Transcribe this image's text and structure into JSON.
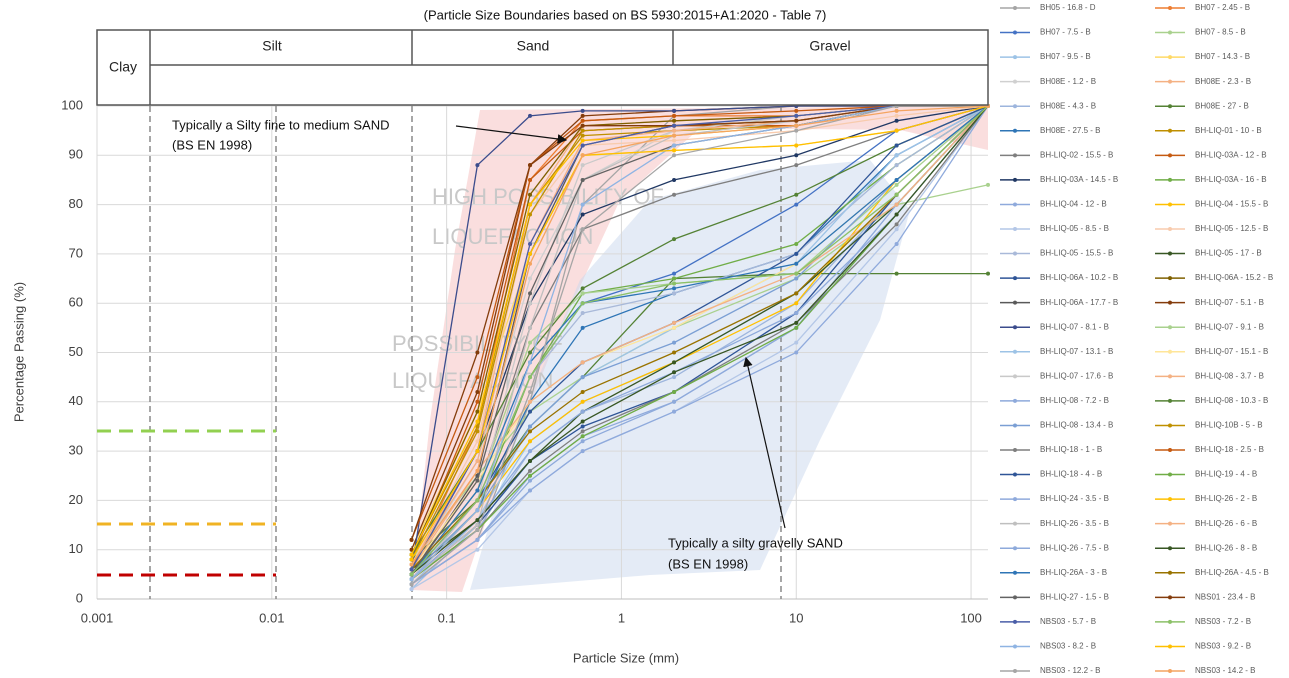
{
  "chart_data": {
    "type": "line",
    "title": "(Particle Size Boundaries based on BS 5930:2015+A1:2020 - Table 7)",
    "soil_classes": [
      "Clay",
      "Silt",
      "Sand",
      "Gravel"
    ],
    "x_label": "Particle Size (mm)",
    "y_label": "Percentage Passing (%)",
    "annotations": [
      "Typically a Silty fine to medium SAND",
      "(BS EN 1998)",
      "Typically a silty gravelly SAND",
      "(BS EN 1998)"
    ],
    "watermark": [
      "HIGH POSSIBILITY OF",
      "LIQUEFACTION",
      "POSSIBILITY OF",
      "LIQUEFACTION"
    ],
    "log_x": true,
    "grid": true,
    "xlim": [
      0.001,
      125
    ],
    "xticks": [
      0.001,
      0.01,
      0.1,
      1,
      10,
      100
    ],
    "ylim": [
      0,
      100
    ],
    "yticks": [
      0,
      10,
      20,
      30,
      40,
      50,
      60,
      70,
      80,
      90,
      100
    ],
    "x": [
      0.063,
      0.15,
      0.3,
      0.6,
      2,
      10,
      37.5,
      125
    ],
    "series": [
      {
        "name": "BH05 - 16.8 - D",
        "color": "#a5a5a5",
        "values": [
          3,
          12,
          40,
          80,
          98,
          100,
          100,
          100
        ]
      },
      {
        "name": "BH07 - 2.45 - B",
        "color": "#ed7d31",
        "values": [
          6,
          35,
          85,
          97,
          98,
          98,
          100,
          100
        ]
      },
      {
        "name": "BH07 - 7.5 - B",
        "color": "#4472c4",
        "values": [
          4,
          20,
          45,
          60,
          66,
          80,
          95,
          100
        ]
      },
      {
        "name": "BH07 - 8.5 - B",
        "color": "#a9d18e",
        "values": [
          8,
          25,
          38,
          45,
          55,
          65,
          80,
          84
        ]
      },
      {
        "name": "BH07 - 9.5 - B",
        "color": "#9dc3e6",
        "values": [
          2,
          15,
          32,
          40,
          48,
          62,
          80,
          100
        ]
      },
      {
        "name": "BH07 - 14.3 - B",
        "color": "#ffd966",
        "values": [
          10,
          38,
          70,
          90,
          91,
          92,
          95,
          100
        ]
      },
      {
        "name": "BH08E - 1.2 - B",
        "color": "#d0d0d0",
        "values": [
          6,
          28,
          65,
          85,
          95,
          98,
          100,
          100
        ]
      },
      {
        "name": "BH08E - 2.3 - B",
        "color": "#f4b183",
        "values": [
          7,
          30,
          80,
          96,
          97,
          98,
          100,
          100
        ]
      },
      {
        "name": "BH08E - 4.3 - B",
        "color": "#9db5dd",
        "values": [
          3,
          14,
          30,
          38,
          45,
          60,
          82,
          100
        ]
      },
      {
        "name": "BH08E - 27 - B",
        "color": "#548235",
        "values": [
          8,
          20,
          35,
          45,
          65,
          66,
          66,
          66
        ]
      },
      {
        "name": "BH08E - 27.5 - B",
        "color": "#2e75b6",
        "values": [
          4,
          18,
          40,
          55,
          62,
          70,
          90,
          100
        ]
      },
      {
        "name": "BH-LIQ-01 - 10 - B",
        "color": "#bf8f00",
        "values": [
          9,
          35,
          80,
          94,
          95,
          96,
          100,
          100
        ]
      },
      {
        "name": "BH-LIQ-02 - 15.5 - B",
        "color": "#7f7f7f",
        "values": [
          5,
          22,
          55,
          75,
          82,
          88,
          95,
          100
        ]
      },
      {
        "name": "BH-LIQ-03A - 12 - B",
        "color": "#c55a11",
        "values": [
          8,
          40,
          85,
          95,
          96,
          96,
          100,
          100
        ]
      },
      {
        "name": "BH-LIQ-03A - 14.5 - B",
        "color": "#203864",
        "values": [
          6,
          30,
          60,
          78,
          85,
          90,
          97,
          100
        ]
      },
      {
        "name": "BH-LIQ-03A - 16 - B",
        "color": "#70ad47",
        "values": [
          5,
          18,
          45,
          62,
          65,
          72,
          88,
          100
        ]
      },
      {
        "name": "BH-LIQ-04 - 12 - B",
        "color": "#8faadc",
        "values": [
          3,
          12,
          25,
          33,
          40,
          55,
          78,
          100
        ]
      },
      {
        "name": "BH-LIQ-04 - 15.5 - B",
        "color": "#ffc000",
        "values": [
          4,
          18,
          32,
          40,
          48,
          60,
          85,
          100
        ]
      },
      {
        "name": "BH-LIQ-05 - 8.5 - B",
        "color": "#b4c7e7",
        "values": [
          2,
          10,
          22,
          30,
          38,
          52,
          75,
          100
        ]
      },
      {
        "name": "BH-LIQ-05 - 12.5 - B",
        "color": "#f8cbad",
        "values": [
          7,
          32,
          78,
          92,
          93,
          95,
          98,
          100
        ]
      },
      {
        "name": "BH-LIQ-05 - 15.5 - B",
        "color": "#a9b9d9",
        "values": [
          5,
          20,
          45,
          58,
          62,
          70,
          88,
          100
        ]
      },
      {
        "name": "BH-LIQ-05 - 17 - B",
        "color": "#385723",
        "values": [
          6,
          16,
          28,
          38,
          48,
          62,
          80,
          100
        ]
      },
      {
        "name": "BH-LIQ-06A - 10.2 - B",
        "color": "#2f5597",
        "values": [
          4,
          15,
          28,
          35,
          42,
          58,
          82,
          100
        ]
      },
      {
        "name": "BH-LIQ-06A - 15.2 - B",
        "color": "#7f6000",
        "values": [
          9,
          38,
          82,
          96,
          97,
          98,
          100,
          100
        ]
      },
      {
        "name": "BH-LIQ-06A - 17.7 - B",
        "color": "#595959",
        "values": [
          5,
          25,
          70,
          92,
          96,
          97,
          100,
          100
        ]
      },
      {
        "name": "BH-LIQ-07 - 5.1 - B",
        "color": "#843c0c",
        "values": [
          10,
          42,
          88,
          98,
          99,
          100,
          100,
          100
        ]
      },
      {
        "name": "BH-LIQ-07 - 8.1 - B",
        "color": "#3b4c8c",
        "values": [
          6,
          88,
          98,
          99,
          99,
          100,
          100,
          100
        ]
      },
      {
        "name": "BH-LIQ-07 - 9.1 - B",
        "color": "#a9d18e",
        "values": [
          5,
          22,
          52,
          62,
          64,
          66,
          84,
          100
        ]
      },
      {
        "name": "BH-LIQ-07 - 13.1 - B",
        "color": "#9dc3e6",
        "values": [
          3,
          16,
          35,
          45,
          55,
          68,
          90,
          100
        ]
      },
      {
        "name": "BH-LIQ-07 - 15.1 - B",
        "color": "#ffe699",
        "values": [
          6,
          24,
          40,
          48,
          55,
          68,
          85,
          100
        ]
      },
      {
        "name": "BH-LIQ-07 - 17.6 - B",
        "color": "#c9c9c9",
        "values": [
          4,
          20,
          60,
          88,
          95,
          98,
          100,
          100
        ]
      },
      {
        "name": "BH-LIQ-08 - 3.7 - B",
        "color": "#f4b183",
        "values": [
          7,
          28,
          72,
          93,
          95,
          97,
          100,
          100
        ]
      },
      {
        "name": "BH-LIQ-08 - 7.2 - B",
        "color": "#8eaadb",
        "values": [
          3,
          12,
          24,
          32,
          40,
          55,
          80,
          100
        ]
      },
      {
        "name": "BH-LIQ-08 - 10.3 - B",
        "color": "#548235",
        "values": [
          9,
          30,
          50,
          63,
          73,
          82,
          92,
          100
        ]
      },
      {
        "name": "BH-LIQ-08 - 13.4 - B",
        "color": "#7b9fd4",
        "values": [
          5,
          18,
          35,
          45,
          52,
          65,
          85,
          100
        ]
      },
      {
        "name": "BH-LIQ-10B - 5 - B",
        "color": "#bf9000",
        "values": [
          8,
          34,
          78,
          95,
          96,
          97,
          100,
          100
        ]
      },
      {
        "name": "BH-LIQ-18 - 1 - B",
        "color": "#7f7f7f",
        "values": [
          4,
          14,
          26,
          34,
          42,
          56,
          76,
          100
        ]
      },
      {
        "name": "BH-LIQ-18 - 2.5 - B",
        "color": "#c55a11",
        "values": [
          12,
          45,
          88,
          97,
          98,
          99,
          100,
          100
        ]
      },
      {
        "name": "BH-LIQ-18 - 4 - B",
        "color": "#2f5597",
        "values": [
          5,
          20,
          38,
          48,
          56,
          70,
          92,
          100
        ]
      },
      {
        "name": "BH-LIQ-19 - 4 - B",
        "color": "#70ad47",
        "values": [
          4,
          14,
          25,
          33,
          42,
          55,
          78,
          100
        ]
      },
      {
        "name": "BH-LIQ-24 - 3.5 - B",
        "color": "#8faadc",
        "values": [
          3,
          12,
          22,
          30,
          38,
          50,
          72,
          100
        ]
      },
      {
        "name": "BH-LIQ-26 - 2 - B",
        "color": "#ffc000",
        "values": [
          9,
          36,
          80,
          93,
          94,
          96,
          100,
          100
        ]
      },
      {
        "name": "BH-LIQ-26 - 3.5 - B",
        "color": "#bfbfbf",
        "values": [
          4,
          15,
          55,
          85,
          94,
          97,
          100,
          100
        ]
      },
      {
        "name": "BH-LIQ-26 - 6 - B",
        "color": "#f4b183",
        "values": [
          6,
          26,
          40,
          48,
          56,
          66,
          80,
          100
        ]
      },
      {
        "name": "BH-LIQ-26 - 7.5 - B",
        "color": "#8eaadb",
        "values": [
          4,
          16,
          30,
          38,
          46,
          58,
          78,
          100
        ]
      },
      {
        "name": "BH-LIQ-26 - 8 - B",
        "color": "#375623",
        "values": [
          5,
          16,
          28,
          36,
          46,
          56,
          78,
          100
        ]
      },
      {
        "name": "BH-LIQ-26A - 3 - B",
        "color": "#2e75b6",
        "values": [
          5,
          22,
          48,
          60,
          63,
          68,
          85,
          100
        ]
      },
      {
        "name": "BH-LIQ-26A - 4.5 - B",
        "color": "#997300",
        "values": [
          6,
          20,
          34,
          42,
          50,
          62,
          82,
          100
        ]
      },
      {
        "name": "BH-LIQ-27 - 1.5 - B",
        "color": "#636363",
        "values": [
          5,
          24,
          62,
          85,
          92,
          96,
          100,
          100
        ]
      },
      {
        "name": "NBS01 - 23.4 - B",
        "color": "#843c0c",
        "values": [
          12,
          50,
          88,
          96,
          96,
          97,
          100,
          100
        ]
      },
      {
        "name": "NBS03 - 5.7 - B",
        "color": "#4a5ea8",
        "values": [
          6,
          30,
          72,
          92,
          96,
          98,
          100,
          100
        ]
      },
      {
        "name": "NBS03 - 7.2 - B",
        "color": "#8cc168",
        "values": [
          5,
          20,
          45,
          60,
          64,
          66,
          82,
          100
        ]
      },
      {
        "name": "NBS03 - 8.2 - B",
        "color": "#8fb4e3",
        "values": [
          4,
          18,
          48,
          80,
          92,
          96,
          100,
          100
        ]
      },
      {
        "name": "NBS03 - 9.2 - B",
        "color": "#ffc000",
        "values": [
          8,
          30,
          70,
          90,
          91,
          92,
          95,
          100
        ]
      },
      {
        "name": "NBS03 - 12.2 - B",
        "color": "#a6a6a6",
        "values": [
          3,
          14,
          42,
          75,
          90,
          95,
          100,
          100
        ]
      },
      {
        "name": "NBS03 - 14.2 - B",
        "color": "#f4a460",
        "values": [
          7,
          26,
          68,
          90,
          94,
          96,
          99,
          100
        ]
      }
    ]
  }
}
